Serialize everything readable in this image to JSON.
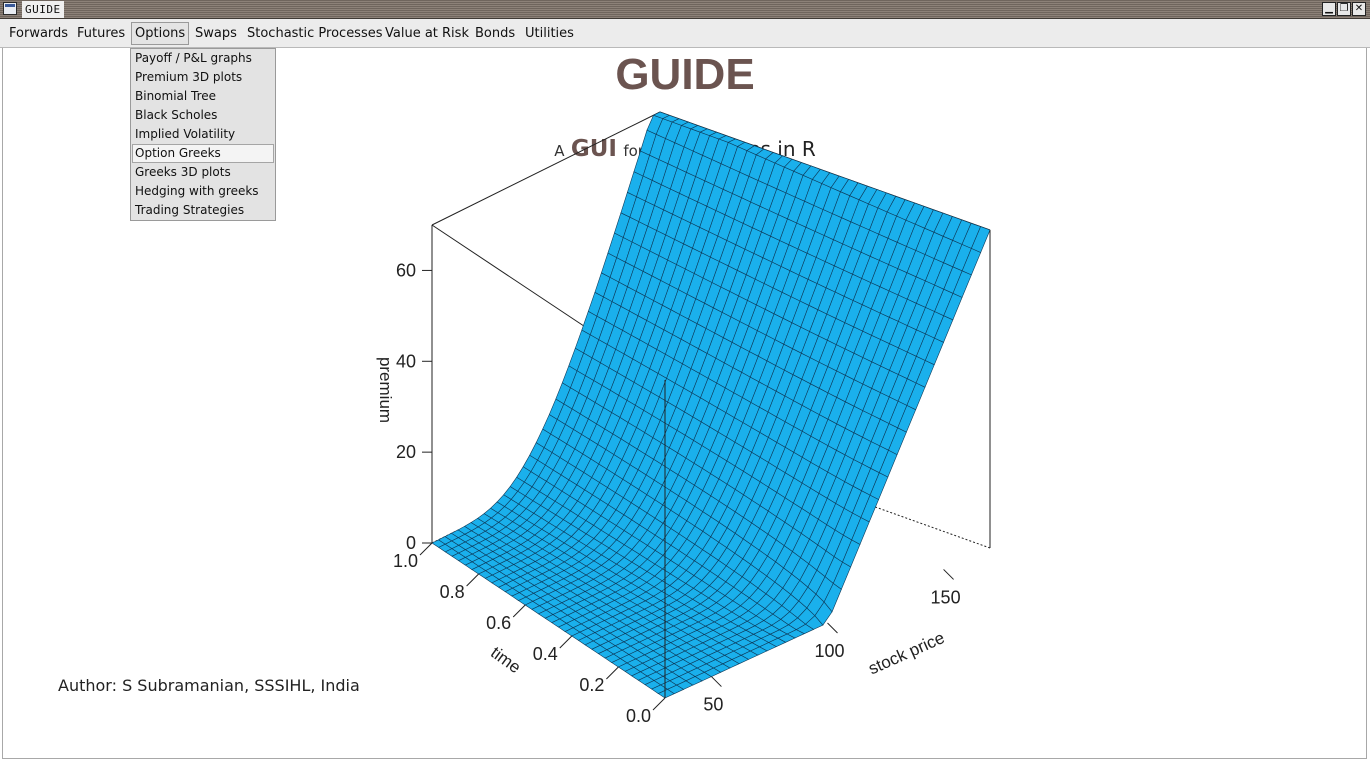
{
  "window": {
    "title": "GUIDE",
    "controls": [
      "minimize",
      "restore",
      "close"
    ]
  },
  "menubar": {
    "items": [
      {
        "label": "Forwards"
      },
      {
        "label": "Futures"
      },
      {
        "label": "Options",
        "active": true
      },
      {
        "label": "Swaps"
      },
      {
        "label": "Stochastic Processes"
      },
      {
        "label": "Value at Risk"
      },
      {
        "label": "Bonds"
      },
      {
        "label": "Utilities"
      }
    ]
  },
  "options_menu": {
    "items": [
      {
        "label": "Payoff / P&L graphs"
      },
      {
        "label": "Premium 3D plots"
      },
      {
        "label": "Binomial Tree"
      },
      {
        "label": "Black Scholes"
      },
      {
        "label": "Implied Volatility"
      },
      {
        "label": "Option Greeks",
        "highlighted": true
      },
      {
        "label": "Greeks 3D plots"
      },
      {
        "label": "Hedging with greeks"
      },
      {
        "label": "Trading Strategies"
      }
    ]
  },
  "main": {
    "title": "GUIDE",
    "subtitle": {
      "a": "A",
      "gui": "GUI",
      "for": "for",
      "de": "DE",
      "rest": "rivatives in R"
    },
    "author": "Author: S Subramanian, SSSIHL, India"
  },
  "chart_data": {
    "type": "surface",
    "description_of_function": "call option premium vs stock price and time",
    "xlabel": "stock price",
    "ylabel": "time",
    "zlabel": "premium",
    "x_ticks": [
      50,
      100,
      150
    ],
    "y_ticks": [
      0.0,
      0.2,
      0.4,
      0.6,
      0.8,
      1.0
    ],
    "z_ticks": [
      0,
      20,
      40,
      60
    ],
    "xlim": [
      30,
      170
    ],
    "ylim": [
      0,
      1
    ],
    "zlim": [
      0,
      70
    ],
    "surface_color": "#1ab0ec",
    "grid_lines": 35
  }
}
